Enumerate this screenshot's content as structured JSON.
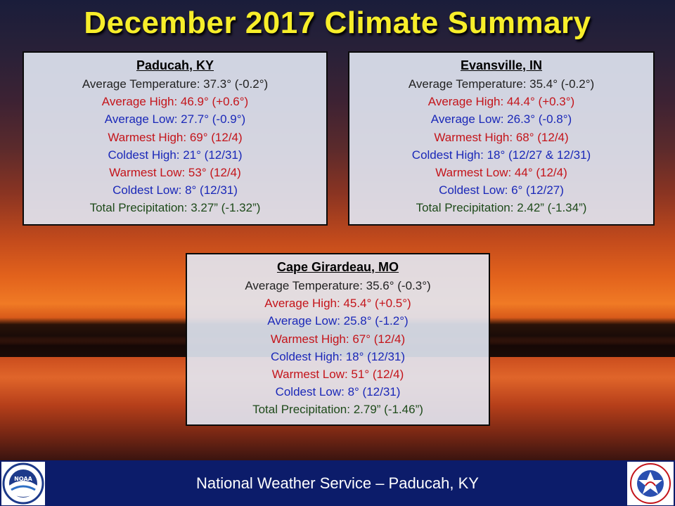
{
  "title": "December 2017 Climate Summary",
  "panels": [
    {
      "station": "Paducah, KY",
      "lines": [
        "Average Temperature: 37.3° (-0.2°)",
        "Average High: 46.9° (+0.6°)",
        "Average Low: 27.7° (-0.9°)",
        "Warmest High: 69° (12/4)",
        "Coldest High: 21° (12/31)",
        "Warmest Low: 53° (12/4)",
        "Coldest Low: 8° (12/31)",
        "Total Precipitation: 3.27” (-1.32”)"
      ]
    },
    {
      "station": "Evansville, IN",
      "lines": [
        "Average Temperature: 35.4° (-0.2°)",
        "Average High: 44.4° (+0.3°)",
        "Average Low: 26.3° (-0.8°)",
        "Warmest High: 68° (12/4)",
        "Coldest High: 18° (12/27 & 12/31)",
        "Warmest Low: 44° (12/4)",
        "Coldest Low: 6° (12/27)",
        "Total Precipitation: 2.42” (-1.34”)"
      ]
    },
    {
      "station": "Cape Girardeau, MO",
      "lines": [
        "Average Temperature: 35.6° (-0.3°)",
        "Average High: 45.4° (+0.5°)",
        "Average Low: 25.8° (-1.2°)",
        "Warmest High: 67° (12/4)",
        "Coldest High: 18° (12/31)",
        "Warmest Low: 51° (12/4)",
        "Coldest Low: 8° (12/31)",
        "Total Precipitation: 2.79” (-1.46”)"
      ]
    }
  ],
  "footer": {
    "text": "National Weather Service – Paducah, KY",
    "left_logo_text": "NOAA",
    "right_logo_text": "NATIONAL WEATHER SERVICE"
  },
  "colors": {
    "title": "#f7ee2a",
    "footer_bg": "#0c1c6a",
    "average": "#222222",
    "warm": "#c4141a",
    "cold": "#1a28b8",
    "precip": "#1e4a1a"
  }
}
